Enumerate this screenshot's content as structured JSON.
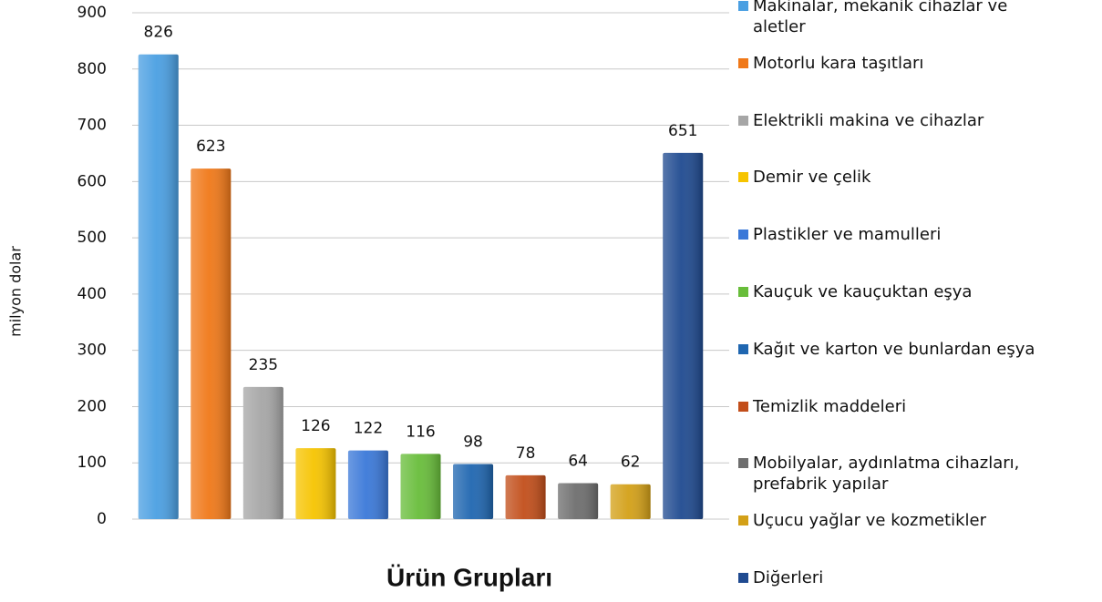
{
  "chart_data": {
    "type": "bar",
    "x_label": "Ürün Grupları",
    "y_label": "milyon dolar",
    "categories": [
      "Makinalar, mekanik cihazlar ve aletler",
      "Motorlu kara taşıtları",
      "Elektrikli makina ve cihazlar",
      "Demir ve çelik",
      "Plastikler ve mamulleri",
      "Kauçuk ve kauçuktan eşya",
      "Kağıt ve karton ve bunlardan eşya",
      "Temizlik maddeleri",
      "Mobilyalar, aydınlatma cihazları, prefabrik yapılar",
      "Uçucu yağlar ve kozmetikler",
      "Diğerleri"
    ],
    "values": [
      826,
      623,
      235,
      126,
      122,
      116,
      98,
      78,
      64,
      62,
      651
    ],
    "colors": [
      "#4a9fe2",
      "#f07818",
      "#a6a6a6",
      "#f6c400",
      "#3a78d8",
      "#68bd3a",
      "#1f66b0",
      "#c24e1a",
      "#6e6e6e",
      "#d3a017",
      "#1f4a90"
    ],
    "ylim": [
      0,
      900
    ],
    "yticks": [
      0,
      100,
      200,
      300,
      400,
      500,
      600,
      700,
      800,
      900
    ],
    "grid": true,
    "legend": "right"
  }
}
